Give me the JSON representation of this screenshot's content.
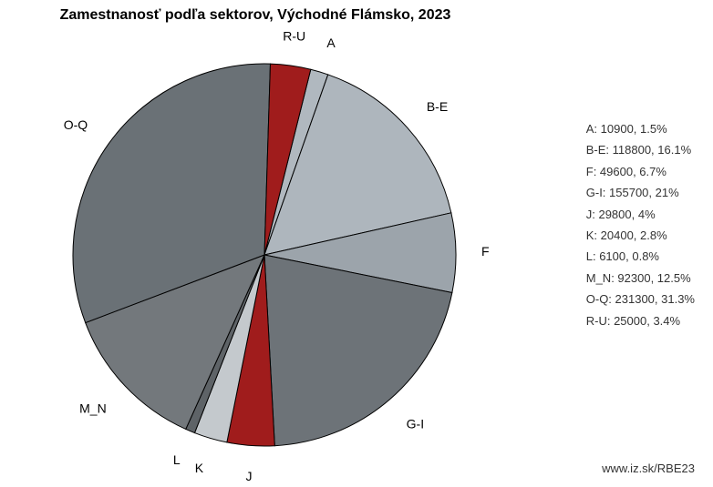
{
  "chart": {
    "type": "pie",
    "title": "Zamestnanosť podľa sektorov, Východné Flámsko, 2023",
    "title_fontsize": 16,
    "background_color": "#ffffff",
    "radius": 210,
    "start_angle_deg": 76,
    "slices": [
      {
        "label": "A",
        "value": 10900,
        "pct": 1.5,
        "color": "#b0b8bf"
      },
      {
        "label": "B-E",
        "value": 118800,
        "pct": 16.1,
        "color": "#aeb6bd"
      },
      {
        "label": "F",
        "value": 49600,
        "pct": 6.7,
        "color": "#9ca4ab"
      },
      {
        "label": "G-I",
        "value": 155700,
        "pct": 21.0,
        "color": "#6d7378"
      },
      {
        "label": "J",
        "value": 29800,
        "pct": 4.0,
        "color": "#a01c1c"
      },
      {
        "label": "K",
        "value": 20400,
        "pct": 2.8,
        "color": "#c4c9cd"
      },
      {
        "label": "L",
        "value": 6100,
        "pct": 0.8,
        "color": "#5e6367"
      },
      {
        "label": "M_N",
        "value": 92300,
        "pct": 12.5,
        "color": "#73787c"
      },
      {
        "label": "O-Q",
        "value": 231300,
        "pct": 31.3,
        "color": "#6a7176"
      },
      {
        "label": "R-U",
        "value": 25000,
        "pct": 3.4,
        "color": "#a01c1c"
      }
    ],
    "slice_border_color": "#000000",
    "slice_border_width": 1,
    "label_offset": 28,
    "label_fontsize": 14
  },
  "legend": {
    "fontsize": 13,
    "text_color": "#333333",
    "items": [
      "A: 10900, 1.5%",
      "B-E: 118800, 16.1%",
      "F: 49600, 6.7%",
      "G-I: 155700, 21%",
      "J: 29800, 4%",
      "K: 20400, 2.8%",
      "L: 6100, 0.8%",
      "M_N: 92300, 12.5%",
      "O-Q: 231300, 31.3%",
      "R-U: 25000, 3.4%"
    ]
  },
  "footer": {
    "text": "www.iz.sk/RBE23",
    "fontsize": 13,
    "color": "#333333"
  }
}
